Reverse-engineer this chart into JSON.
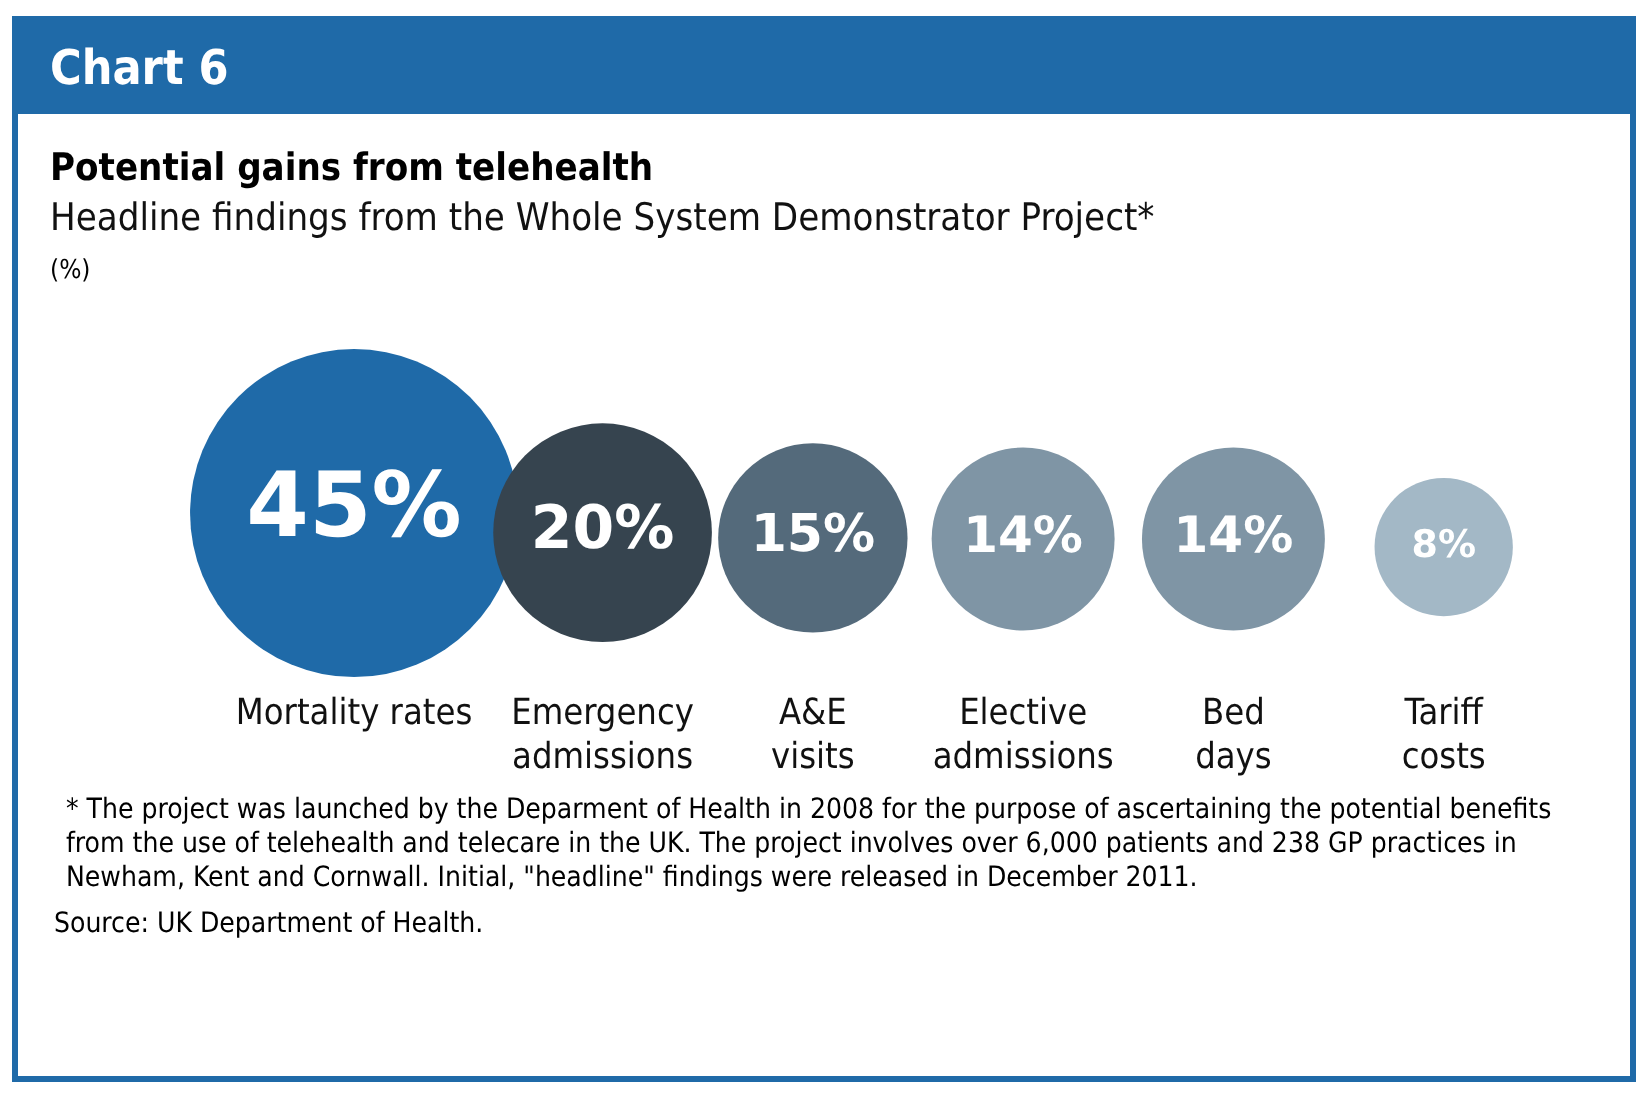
{
  "chart_data": {
    "type": "other",
    "title": "Potential gains from telehealth",
    "subtitle": "Headline findings from the Whole System Demonstrator Project*",
    "categories": [
      "Mortality rates",
      "Emergency admissions",
      "A&E visits",
      "Elective admissions",
      "Bed days",
      "Tariff costs"
    ],
    "values": [
      45,
      20,
      15,
      14,
      14,
      8
    ],
    "value_labels": [
      "45%",
      "20%",
      "15%",
      "14%",
      "14%",
      "8%"
    ],
    "colors": [
      "#1f6aa8",
      "#36444f",
      "#546a7b",
      "#7f95a5",
      "#7f95a5",
      "#a3b8c6"
    ],
    "legend": false,
    "annotations": [
      "Chart 6",
      "(%)",
      "* The project was launched by the Deparment of Health in 2008 for the purpose of ascertaining the potential benefits from the use of telehealth and telecare in the UK. The project involves over 6,000 patients and 238 GP practices in Newham, Kent and Cornwall. Initial, \"headline\" findings were released in December 2011.",
      "Source: UK Department of Health."
    ]
  }
}
